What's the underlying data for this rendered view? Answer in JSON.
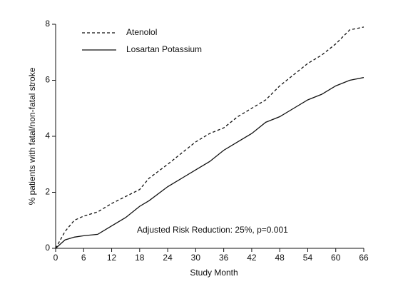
{
  "chart_data": {
    "type": "line",
    "xlabel": "Study Month",
    "ylabel": "% patients with fatal/non-fatal stroke",
    "annotation": "Adjusted Risk Reduction: 25%, p=0.001",
    "x": [
      0,
      1,
      2,
      3,
      4,
      6,
      9,
      12,
      15,
      18,
      20,
      24,
      27,
      30,
      33,
      36,
      39,
      42,
      45,
      48,
      51,
      54,
      57,
      60,
      63,
      66
    ],
    "series": [
      {
        "name": "Atenolol",
        "color": "#111111",
        "dash": true,
        "values": [
          0,
          0.3,
          0.6,
          0.8,
          1.0,
          1.15,
          1.3,
          1.6,
          1.85,
          2.1,
          2.5,
          3.0,
          3.4,
          3.8,
          4.1,
          4.3,
          4.7,
          5.0,
          5.3,
          5.8,
          6.2,
          6.6,
          6.9,
          7.3,
          7.8,
          7.9
        ]
      },
      {
        "name": "Losartan Potassium",
        "color": "#111111",
        "dash": false,
        "values": [
          0,
          0.15,
          0.3,
          0.35,
          0.4,
          0.45,
          0.5,
          0.8,
          1.1,
          1.5,
          1.7,
          2.2,
          2.5,
          2.8,
          3.1,
          3.5,
          3.8,
          4.1,
          4.5,
          4.7,
          5.0,
          5.3,
          5.5,
          5.8,
          6.0,
          6.1
        ]
      }
    ],
    "xlim": [
      0,
      66
    ],
    "xticks": [
      0,
      6,
      12,
      18,
      24,
      30,
      36,
      42,
      48,
      54,
      60,
      66
    ],
    "ylim": [
      0,
      8
    ],
    "yticks": [
      0,
      2,
      4,
      6,
      8
    ]
  }
}
